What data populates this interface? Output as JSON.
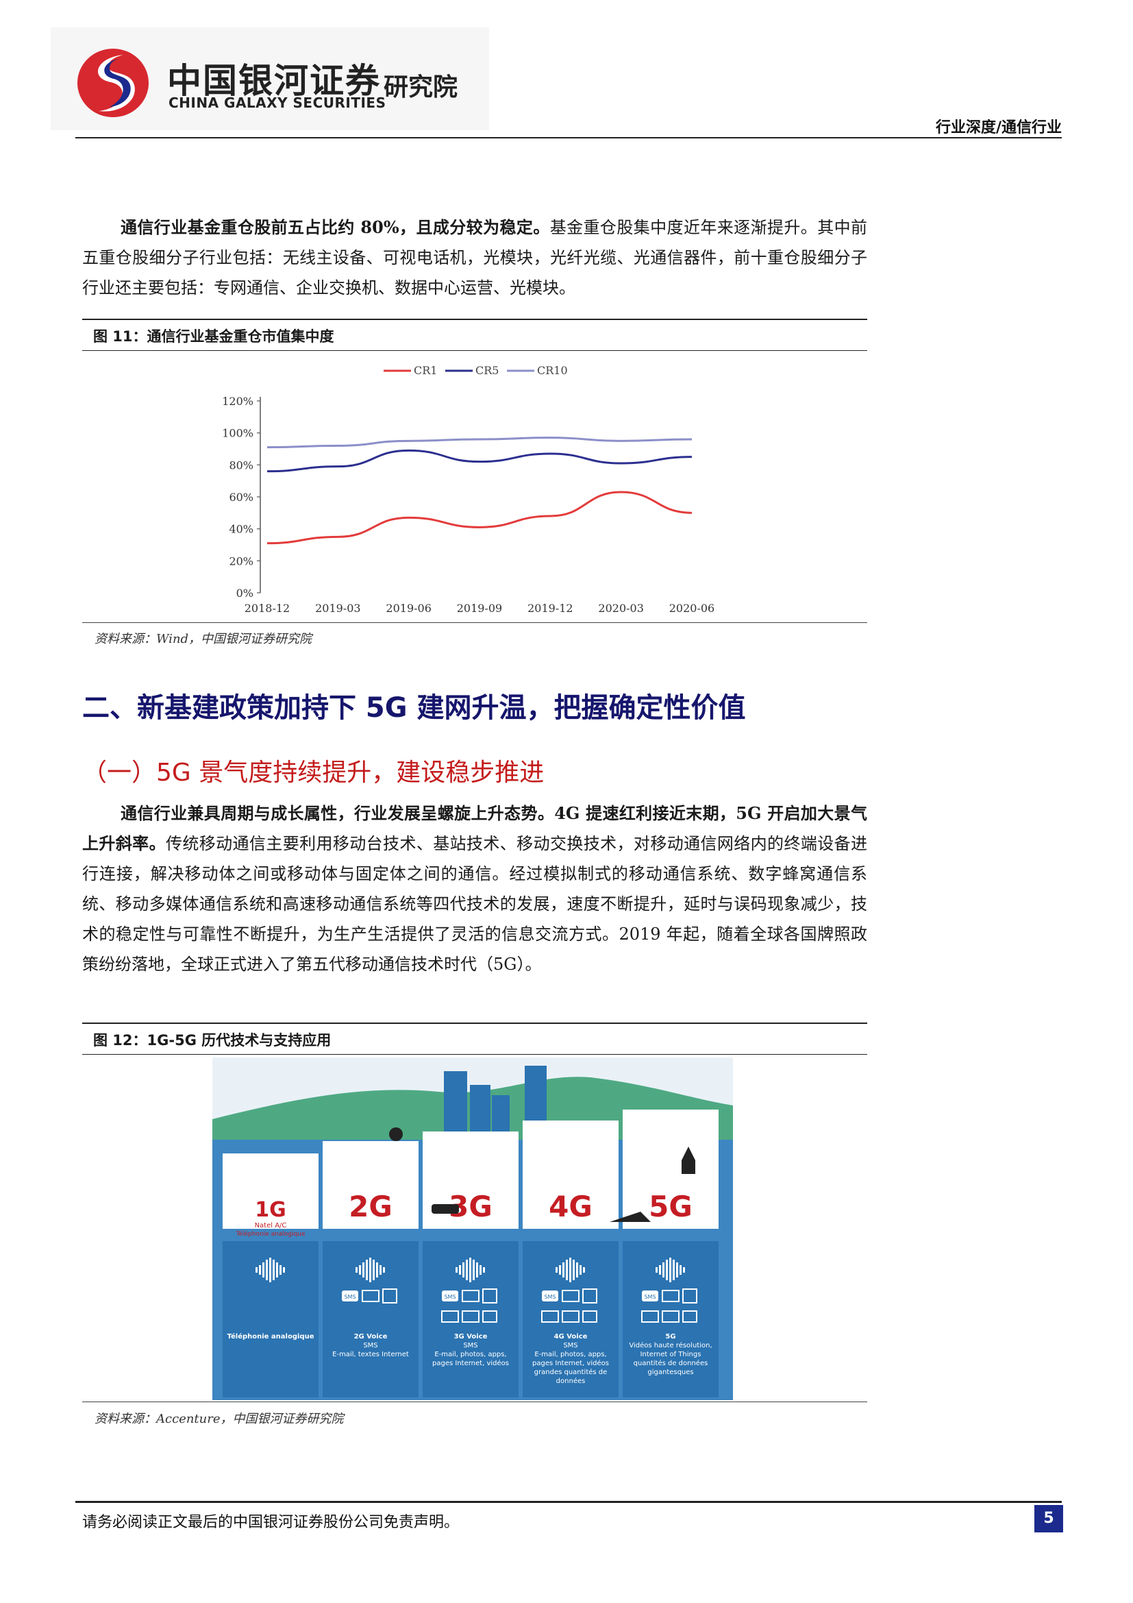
{
  "header": {
    "brand_cn": "中国银河证券",
    "brand_en": "CHINA GALAXY SECURITIES",
    "department": "研究院",
    "category": "行业深度/通信行业",
    "colors": {
      "logo_red": "#d7282f",
      "logo_blue": "#1b2a8c"
    }
  },
  "para1": {
    "bold_lead": "通信行业基金重仓股前五占比约 80%，且成分较为稳定。",
    "rest": "基金重仓股集中度近年来逐渐提升。其中前五重仓股细分子行业包括：无线主设备、可视电话机，光模块，光纤光缆、光通信器件，前十重仓股细分子行业还主要包括：专网通信、企业交换机、数据中心运营、光模块。"
  },
  "figure11": {
    "title": "图 11：通信行业基金重仓市值集中度",
    "source": "资料来源：Wind，中国银河证券研究院"
  },
  "chart_data": {
    "type": "line",
    "x": [
      "2018-12",
      "2019-03",
      "2019-06",
      "2019-09",
      "2019-12",
      "2020-03",
      "2020-06"
    ],
    "series": [
      {
        "name": "CR1",
        "color": "#e33b3b",
        "values": [
          31,
          35,
          47,
          41,
          48,
          63,
          50
        ]
      },
      {
        "name": "CR5",
        "color": "#2c2f8f",
        "values": [
          76,
          79,
          89,
          82,
          87,
          81,
          85
        ]
      },
      {
        "name": "CR10",
        "color": "#8b8fc9",
        "values": [
          91,
          92,
          95,
          96,
          97,
          95,
          96
        ]
      }
    ],
    "y_ticks": [
      "0%",
      "20%",
      "40%",
      "60%",
      "80%",
      "100%",
      "120%"
    ],
    "ylim": [
      0,
      120
    ],
    "legend": "top"
  },
  "section2": {
    "h2": "二、新基建政策加持下 5G 建网升温，把握确定性价值",
    "h3": "（一）5G 景气度持续提升，建设稳步推进"
  },
  "para2": {
    "bold_lead": "通信行业兼具周期与成长属性，行业发展呈螺旋上升态势。4G 提速红利接近末期，5G 开启加大景气上升斜率。",
    "rest": "传统移动通信主要利用移动台技术、基站技术、移动交换技术，对移动通信网络内的终端设备进行连接，解决移动体之间或移动体与固定体之间的通信。经过模拟制式的移动通信系统、数字蜂窝通信系统、移动多媒体通信系统和高速移动通信系统等四代技术的发展，速度不断提升，延时与误码现象减少，技术的稳定性与可靠性不断提升，为生产生活提供了灵活的信息交流方式。2019 年起，随着全球各国牌照政策纷纷落地，全球正式进入了第五代移动通信技术时代（5G）。"
  },
  "figure12": {
    "title": "图 12：1G-5G 历代技术与支持应用",
    "source": "资料来源：Accenture，中国银河证券研究院",
    "generations": [
      {
        "name": "1G",
        "sub1": "Natel A/C",
        "sub2": "Téléphonie analogique",
        "desc": [
          "Téléphonie analogique"
        ]
      },
      {
        "name": "2G",
        "desc": [
          "2G Voice",
          "SMS",
          "E-mail, textes Internet"
        ]
      },
      {
        "name": "3G",
        "desc": [
          "3G Voice",
          "SMS",
          "E-mail, photos, apps,",
          "pages Internet, vidéos"
        ]
      },
      {
        "name": "4G",
        "desc": [
          "4G Voice",
          "SMS",
          "E-mail, photos, apps,",
          "pages Internet, vidéos",
          "grandes quantités de",
          "données"
        ]
      },
      {
        "name": "5G",
        "desc": [
          "5G",
          "Vidéos haute résolution,",
          "Internet of Things",
          "quantités de données",
          "gigantesques"
        ]
      }
    ],
    "icon_labels": {
      "sms": "SMS"
    },
    "colors": {
      "gen_red": "#c51d24",
      "panel_blue": "#2b73b1",
      "bg_blue": "#3d86c2",
      "hill_green": "#4ea982"
    }
  },
  "footer": {
    "disclaimer": "请务必阅读正文最后的中国银河证券股份公司免责声明。",
    "page": "5"
  }
}
